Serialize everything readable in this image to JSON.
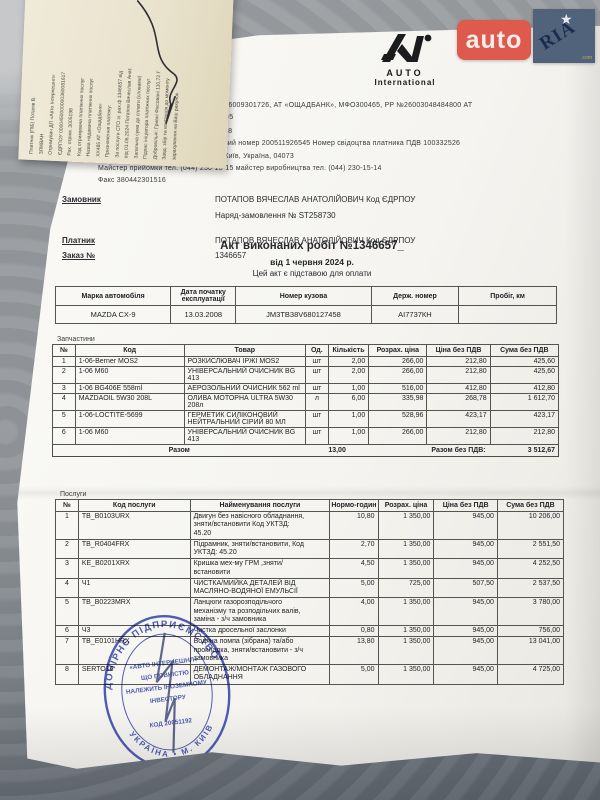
{
  "watermark": {
    "auto_label": "auto",
    "ria_label": "RIA",
    "ria_domain": ".com",
    "auto_bg": "#de5a4d",
    "ria_bg": "#51637a",
    "ria_text": "#1c2c50"
  },
  "vendor_logo": {
    "name": "AUTO",
    "subtitle": "International"
  },
  "receipt": {
    "lines": [
      "Платник (ПІБ) Потапів В.",
      "ЗЛІКВАН",
      "Отримувач ДП «Авто Інтернешнл»",
      "ЄДРПОУ 0000450000000360081617",
      "Рах. отрим. 3005198",
      "Код отримувача платіжних послуг",
      "Назва надавача платіжних послуг",
      "ХХ485 АТ «Ощадбанк»",
      "Призначення платежу:",
      "За послуги СТО зг. рах.ф 1346657 від",
      "від 01.06.2024 Потапов Вячеслав Анат.",
      "Загальна сума до сплати (словами)",
      "Підпис ініціатора платіжних послуг",
      "Добровільні: Гривні Фіксовані 110,72 Г",
      "Завд. збір та квитанція до моменту",
      "зарахування на Ваш рахунок"
    ]
  },
  "header": {
    "bank_line": "00026009301726, АТ «ОЩАДБАНК», МФО300465, РР №26003048484800 АТ",
    "short_line1": "1005",
    "short_line2": "98",
    "reg_line": "вий номер 200511926545 Номер свідоцтва платника ПДВ 100332526",
    "address_line": "пр-т Степана Бандери, буд. 22-А, м. Київ, Україна, 04073",
    "phones_line": "Майстер прийомки тел. (044) 230-15-15 майстер виробництва тел. (044) 230-15-14",
    "fax_line": "Факс 380442301516"
  },
  "parties": {
    "customer_label": "Замовник",
    "customer_value": "ПОТАПОВ ВЯЧЕСЛАВ АНАТОЛІЙОВИЧ Код ЄДРПОУ",
    "order_ref": "Наряд-замовлення № ST258730",
    "payer_label": "Платник",
    "payer_value": "ПОТАПОВ ВЯЧЕСЛАВ АНАТОЛІЙОВИЧ Код ЄДРПОУ",
    "order_no_label": "Заказ №",
    "order_no_value": "1346657"
  },
  "title": {
    "main": "Акт виконаних робіт №1346657_",
    "date_line": "від 1 червня 2024 р.",
    "note": "Цей акт є підставою для оплати"
  },
  "vehicle_table": {
    "headers": [
      "Марка автомобіля",
      "Дата початку експлуатації",
      "Номер кузова",
      "Держ. номер",
      "Пробіг, км"
    ],
    "rows": [
      [
        "MAZDA CX-9",
        "13.03.2008",
        "JM3TB38V680127458",
        "АІ7737КН",
        ""
      ]
    ]
  },
  "parts": {
    "section_label": "Запчастини",
    "headers": [
      "№",
      "Код",
      "Товар",
      "Од.",
      "Кількість",
      "Розрах. ціна",
      "Ціна без ПДВ",
      "Сума без ПДВ"
    ],
    "rows": [
      [
        "1",
        "1-06-Berner MOS2",
        "РОЗКИСЛЮВАЧ ІРЖІ MOS2",
        "шт",
        "2,00",
        "266,00",
        "212,80",
        "425,60"
      ],
      [
        "2",
        "1-06 M60",
        "УНІВЕРСАЛЬНИЙ ОЧИСНИК BG 413",
        "шт",
        "2,00",
        "266,00",
        "212,80",
        "425,60"
      ],
      [
        "3",
        "1-06 BG406E 558ml",
        "АЕРОЗОЛЬНИЙ ОЧИСНИК 562 ml",
        "шт",
        "1,00",
        "516,00",
        "412,80",
        "412,80"
      ],
      [
        "4",
        "MAZDAOIL 5W30 208L",
        "ОЛИВА МОТОРНА ULTRA 5W30 208л",
        "л",
        "6,00",
        "335,98",
        "268,78",
        "1 612,70"
      ],
      [
        "5",
        "1-06-LOCTITE-5699",
        "ГЕРМЕТИК СИЛІКОНОВИЙ НЕЙТРАЛЬНИЙ СІРИЙ 80 МЛ",
        "шт",
        "1,00",
        "528,96",
        "423,17",
        "423,17"
      ],
      [
        "6",
        "1-06 M60",
        "УНІВЕРСАЛЬНИЙ ОЧИСНИК BG 413",
        "шт",
        "1,00",
        "266,00",
        "212,80",
        "212,80"
      ]
    ],
    "total_label": "Разом",
    "total_qty": "13,00",
    "total_sum_label": "Разом без ПДВ:",
    "total_sum": "3 512,67"
  },
  "services": {
    "section_label": "Послуги",
    "headers": [
      "№",
      "Код послуги",
      "Найменування послуги",
      "Нормо-годин",
      "Розрах. ціна",
      "Ціна без ПДВ",
      "Сума без ПДВ"
    ],
    "rows": [
      [
        "1",
        "TB_B0103URX",
        "Двигун без навісного обладнання, зняти/встановити Код УКТЗД: 45.20",
        "10,80",
        "1 350,00",
        "945,00",
        "10 206,00"
      ],
      [
        "2",
        "TB_R0404FRX",
        "Підрамник, зняти/встановити, Код УКТЗД: 45.20",
        "2,70",
        "1 350,00",
        "945,00",
        "2 551,50"
      ],
      [
        "3",
        "KE_B0201XRX",
        "Кришка мех-му ГРМ ,зняти/встановити",
        "4,50",
        "1 350,00",
        "945,00",
        "4 252,50"
      ],
      [
        "4",
        "Ч1",
        "ЧИСТКА/МИЙКА ДЕТАЛЕЙ ВІД МАСЛЯНО-ВОДЯНОЇ ЕМУЛЬСІЇ",
        "5,00",
        "725,00",
        "507,50",
        "2 537,50"
      ],
      [
        "5",
        "TB_B0223MRX",
        "Ланцюги газорозподільчого механізму та розподільчих валів, заміна - з/ч замовника",
        "4,00",
        "1 350,00",
        "945,00",
        "3 780,00"
      ],
      [
        "6",
        "Ч3",
        "Чистка дросельної заслонки",
        "0,80",
        "1 350,00",
        "945,00",
        "756,00"
      ],
      [
        "7",
        "TB_E0101HRX",
        "Водяна помпа (зібрана) та/або прокладка, зняти/встановити - з/ч замовника",
        "13,80",
        "1 350,00",
        "945,00",
        "13 041,00"
      ],
      [
        "8",
        "SERTO16",
        "ДЕМОНТАЖ/МОНТАЖ ГАЗОВОГО ОБЛАДНАННЯ",
        "5,00",
        "1 350,00",
        "945,00",
        "4 725,00"
      ]
    ]
  },
  "stamp": {
    "ring_top": "ДОЧІРНЄ ПІДПРИЄМСТВО",
    "ring_bottom": "УКРАЇНА • М. КИЇВ",
    "center_lines": [
      "«АВТО ІНТЕРНЕШНЛ»",
      "ЩО ПОВНІСТЮ",
      "НАЛЕЖИТЬ ІНОЗЕМНОМУ",
      "ІНВЕСТОРУ",
      "КОД 20051192"
    ],
    "color": "#2b3cae"
  }
}
